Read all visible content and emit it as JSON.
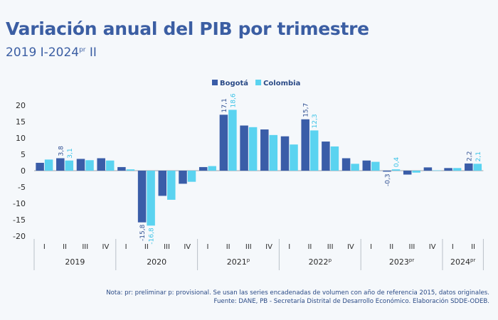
{
  "title": "Variación anual del PIB por trimestre",
  "subtitle": {
    "main": "2019 I-2024",
    "sup": "pr",
    "tail": " II"
  },
  "notes": {
    "line1": "Nota: pr: preliminar p: provisional.  Se usan las series encadenadas de volumen con año de referencia 2015, datos originales.",
    "line2": "Fuente: DANE, PB - Secretaría Distrital de Desarrollo Económico. Elaboración SDDE-ODEB."
  },
  "colors": {
    "bogota": "#3a5da8",
    "colombia": "#5ad3f0",
    "axis_text": "#2b2b2b",
    "label_bogota": "#2f4f92",
    "label_colombia": "#38c2e6"
  },
  "chart_data": {
    "type": "bar",
    "ylim": [
      -20,
      20
    ],
    "yticks": [
      -20,
      -15,
      -10,
      -5,
      0,
      5,
      10,
      15,
      20
    ],
    "legend_position": "top-center",
    "grid": false,
    "groups": [
      {
        "label": "2019",
        "sup": "",
        "quarters": [
          "I",
          "II",
          "III",
          "IV"
        ]
      },
      {
        "label": "2020",
        "sup": "",
        "quarters": [
          "I",
          "II",
          "III",
          "IV"
        ]
      },
      {
        "label": "2021",
        "sup": "p",
        "quarters": [
          "I",
          "II",
          "III",
          "IV"
        ]
      },
      {
        "label": "2022",
        "sup": "p",
        "quarters": [
          "I",
          "II",
          "III",
          "IV"
        ]
      },
      {
        "label": "2023",
        "sup": "pr",
        "quarters": [
          "I",
          "II",
          "III",
          "IV"
        ]
      },
      {
        "label": "2024",
        "sup": "pr",
        "quarters": [
          "I",
          "II"
        ]
      }
    ],
    "series": [
      {
        "name": "Bogotá",
        "values": [
          2.4,
          3.8,
          3.6,
          3.8,
          1.1,
          -15.8,
          -7.7,
          -4.0,
          1.1,
          17.1,
          13.8,
          12.6,
          10.5,
          15.7,
          8.9,
          3.8,
          3.1,
          -0.3,
          -1.2,
          1.0,
          0.8,
          2.2
        ]
      },
      {
        "name": "Colombia",
        "values": [
          3.4,
          3.1,
          3.2,
          3.1,
          0.4,
          -16.8,
          -8.9,
          -3.4,
          1.4,
          18.6,
          13.3,
          10.9,
          8.0,
          12.3,
          7.4,
          2.1,
          2.7,
          0.4,
          -0.6,
          0.1,
          0.8,
          2.1
        ]
      }
    ],
    "data_labels": [
      {
        "index": 1,
        "series": 0,
        "text": "3,8"
      },
      {
        "index": 1,
        "series": 1,
        "text": "3,1"
      },
      {
        "index": 5,
        "series": 0,
        "text": "-15,8"
      },
      {
        "index": 5,
        "series": 1,
        "text": "-16,8"
      },
      {
        "index": 9,
        "series": 0,
        "text": "17,1"
      },
      {
        "index": 9,
        "series": 1,
        "text": "18,6"
      },
      {
        "index": 13,
        "series": 0,
        "text": "15,7"
      },
      {
        "index": 13,
        "series": 1,
        "text": "12,3"
      },
      {
        "index": 17,
        "series": 0,
        "text": "-0,3"
      },
      {
        "index": 17,
        "series": 1,
        "text": "0,4"
      },
      {
        "index": 21,
        "series": 0,
        "text": "2,2"
      },
      {
        "index": 21,
        "series": 1,
        "text": "2,1"
      }
    ]
  }
}
